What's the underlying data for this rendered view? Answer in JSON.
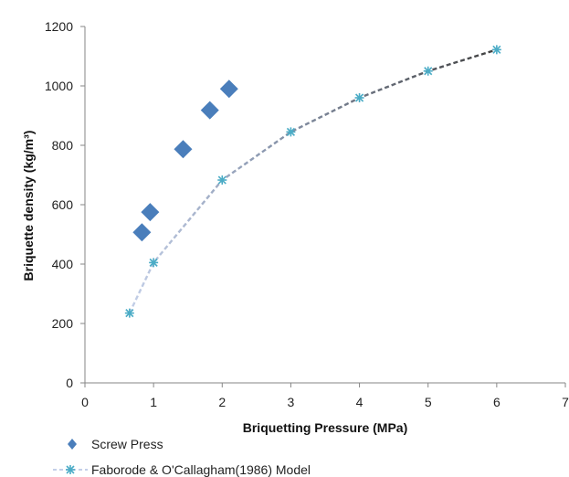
{
  "chart_data": {
    "type": "scatter",
    "xlabel": "Briquetting Pressure (MPa)",
    "ylabel": "Briquette density (kg/m³)",
    "xlim": [
      0,
      7
    ],
    "ylim": [
      0,
      1200
    ],
    "x_ticks": [
      "0",
      "1",
      "2",
      "3",
      "4",
      "5",
      "6",
      "7"
    ],
    "y_ticks": [
      "0",
      "200",
      "400",
      "600",
      "800",
      "1000",
      "1200"
    ],
    "grid": false,
    "legend_position": "bottom-left",
    "series": [
      {
        "name": "Screw Press",
        "marker": "diamond",
        "color": "#4a7ebb",
        "points": [
          [
            0.83,
            507
          ],
          [
            0.95,
            575
          ],
          [
            1.43,
            787
          ],
          [
            1.82,
            918
          ],
          [
            2.1,
            990
          ]
        ]
      },
      {
        "name": "Faborode & O'Callagham(1986) Model",
        "marker": "asterisk",
        "color": "#4bacc6",
        "line_colors": [
          "#c3cfe8",
          "#3f3f3f"
        ],
        "points": [
          [
            0.65,
            235
          ],
          [
            1.0,
            405
          ],
          [
            2.0,
            683
          ],
          [
            3.0,
            845
          ],
          [
            4.0,
            960
          ],
          [
            5.0,
            1050
          ],
          [
            6.0,
            1122
          ]
        ]
      }
    ]
  }
}
